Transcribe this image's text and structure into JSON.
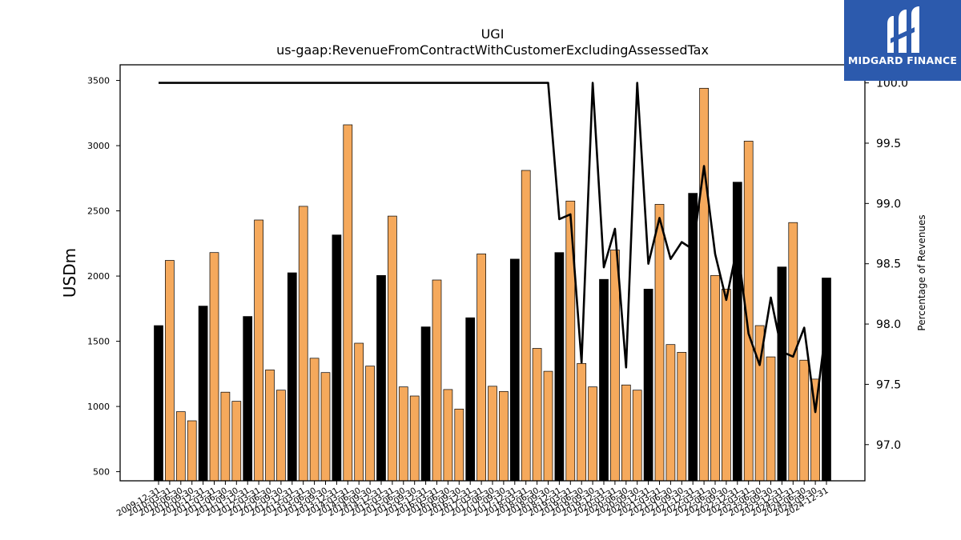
{
  "chart_data": {
    "type": "bar",
    "title": "UGI",
    "subtitle": "us-gaap:RevenueFromContractWithCustomerExcludingAssessedTax",
    "ylabel": "USDm",
    "y2label": "Percentage of Revenues",
    "ylim": [
      430,
      3620
    ],
    "y2lim": [
      96.7,
      100.15
    ],
    "yticks": [
      500,
      1000,
      1500,
      2000,
      2500,
      3000,
      3500
    ],
    "y2ticks": [
      97.0,
      97.5,
      98.0,
      98.5,
      99.0,
      99.5,
      100.0
    ],
    "grid": false,
    "x_tick_labels": [
      "2009-12-31",
      "2010-03-31",
      "2010-06-30",
      "2010-09-30",
      "2010-12-31",
      "2011-03-31",
      "2011-06-30",
      "2011-09-30",
      "2011-12-31",
      "2012-03-31",
      "2012-06-30",
      "2012-09-30",
      "2012-12-31",
      "2013-03-31",
      "2013-06-30",
      "2013-09-30",
      "2013-12-31",
      "2014-03-31",
      "2014-06-30",
      "2014-09-30",
      "2014-12-31",
      "2015-03-31",
      "2015-06-30",
      "2015-09-30",
      "2015-12-31",
      "2016-03-31",
      "2016-06-30",
      "2016-09-30",
      "2016-12-31",
      "2017-03-31",
      "2017-06-30",
      "2017-09-30",
      "2017-12-31",
      "2018-03-31",
      "2018-06-30",
      "2018-09-30",
      "2018-12-31",
      "2019-03-31",
      "2019-06-30",
      "2019-09-30",
      "2019-12-31",
      "2020-03-31",
      "2020-06-30",
      "2020-09-30",
      "2020-12-31",
      "2021-03-31",
      "2021-06-30",
      "2021-09-30",
      "2021-12-31",
      "2022-03-31",
      "2022-06-30",
      "2022-09-30",
      "2022-12-31",
      "2023-03-31",
      "2023-06-30",
      "2023-09-30",
      "2023-12-31",
      "2024-03-31",
      "2024-06-30",
      "2024-09-30",
      "2024-12-31"
    ],
    "bar_values": [
      1620,
      2120,
      960,
      890,
      1770,
      2180,
      1110,
      1040,
      1690,
      2430,
      1280,
      1125,
      2025,
      2535,
      1370,
      1260,
      2315,
      3160,
      1485,
      1310,
      2005,
      2460,
      1150,
      1080,
      1610,
      1970,
      1130,
      980,
      1680,
      2170,
      1155,
      1115,
      2130,
      2810,
      1445,
      1270,
      2180,
      2575,
      1330,
      1150,
      1975,
      2200,
      1165,
      1125,
      1900,
      2550,
      1475,
      1415,
      2635,
      3440,
      2005,
      1900,
      2720,
      3035,
      1620,
      1380,
      2070,
      2410,
      1355,
      1210,
      1985
    ],
    "bar_colors": {
      "annual": "#000000",
      "quarterly": "#f5a95c"
    },
    "annual_indices": [
      0,
      4,
      8,
      12,
      16,
      20,
      24,
      28,
      32,
      36,
      40,
      44,
      48,
      52,
      56,
      60
    ],
    "line_values": [
      100,
      100,
      100,
      100,
      100,
      100,
      100,
      100,
      100,
      100,
      100,
      100,
      100,
      100,
      100,
      100,
      100,
      100,
      100,
      100,
      100,
      100,
      100,
      100,
      100,
      100,
      100,
      100,
      100,
      100,
      100,
      100,
      100,
      100,
      100,
      100,
      98.87,
      98.91,
      97.68,
      100,
      98.47,
      98.79,
      97.64,
      100,
      98.5,
      98.88,
      98.54,
      98.68,
      98.62,
      99.31,
      98.58,
      98.2,
      98.65,
      97.92,
      97.66,
      98.22,
      97.77,
      97.73,
      97.97,
      97.27,
      98.0
    ],
    "line_color": "#000000"
  },
  "logo": {
    "text": "MIDGARD FINANCE",
    "icon": "midgard-m-logo-icon",
    "color": "#2c5aad"
  }
}
